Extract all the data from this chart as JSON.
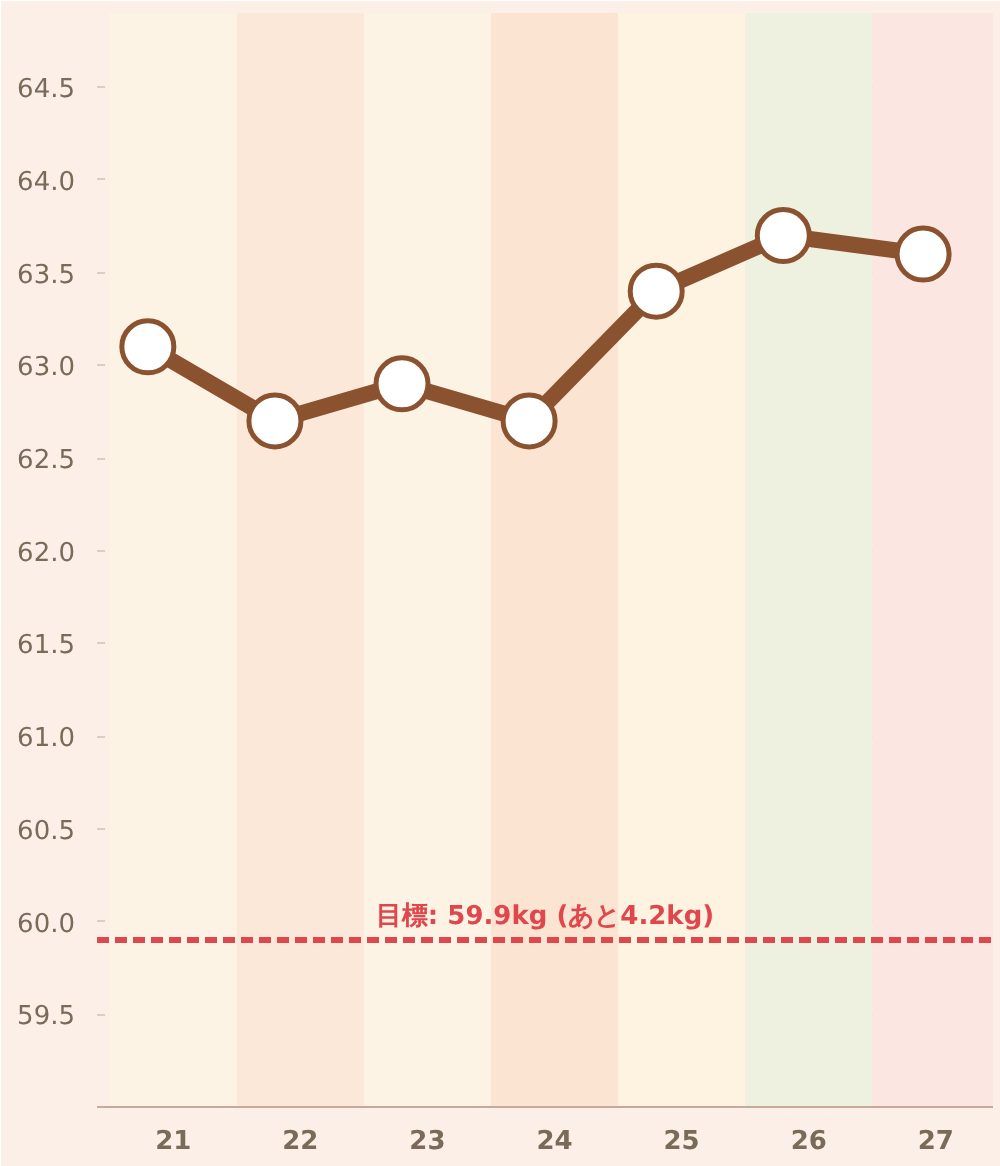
{
  "chart_data": {
    "type": "line",
    "x": [
      21.3,
      22.3,
      23.3,
      24.3,
      25.3,
      26.3,
      27.4
    ],
    "series": [
      {
        "color": "#8b5230",
        "values": [
          63.1,
          62.7,
          62.9,
          62.7,
          63.4,
          63.7,
          63.6
        ]
      }
    ],
    "xlim": [
      20.9,
      27.95
    ],
    "xticks": [
      {
        "value": 21.5,
        "label": "21"
      },
      {
        "value": 22.5,
        "label": "22"
      },
      {
        "value": 23.5,
        "label": "23"
      },
      {
        "value": 24.5,
        "label": "24"
      },
      {
        "value": 25.5,
        "label": "25"
      },
      {
        "value": 26.5,
        "label": "26"
      },
      {
        "value": 27.5,
        "label": "27"
      }
    ],
    "ylim": [
      59.0,
      64.9
    ],
    "yticks": [
      59.5,
      {
        "value": 60,
        "label": "60.0"
      },
      60.5,
      {
        "value": 61,
        "label": "61.0"
      },
      61.5,
      {
        "value": 62,
        "label": "62.0"
      },
      62.5,
      {
        "value": 63,
        "label": "63.0"
      },
      63.5,
      {
        "value": 64,
        "label": "64.0"
      },
      64.5
    ],
    "grid": "y",
    "marker": "circle",
    "line_style": "solid",
    "ref_lines": [
      {
        "axis": "y",
        "value": 59.9,
        "label": "目標: 59.9kg (あと4.2kg)",
        "color": "#e0474c",
        "line_style": "dashed"
      }
    ],
    "bands": [
      {
        "axis": "x",
        "from": 21,
        "to": 22,
        "color": "#fdf3e4"
      },
      {
        "axis": "x",
        "from": 22,
        "to": 23,
        "color": "#fbe8d8"
      },
      {
        "axis": "x",
        "from": 23,
        "to": 24,
        "color": "#fdf3e4"
      },
      {
        "axis": "x",
        "from": 24,
        "to": 25,
        "color": "#fbe4d2"
      },
      {
        "axis": "x",
        "from": 25,
        "to": 26,
        "color": "#fdf3e0"
      },
      {
        "axis": "x",
        "from": 26,
        "to": 27,
        "color": "#eef0e0"
      },
      {
        "axis": "x",
        "from": 27,
        "to": 27.95,
        "color": "#fce6e2"
      }
    ]
  }
}
